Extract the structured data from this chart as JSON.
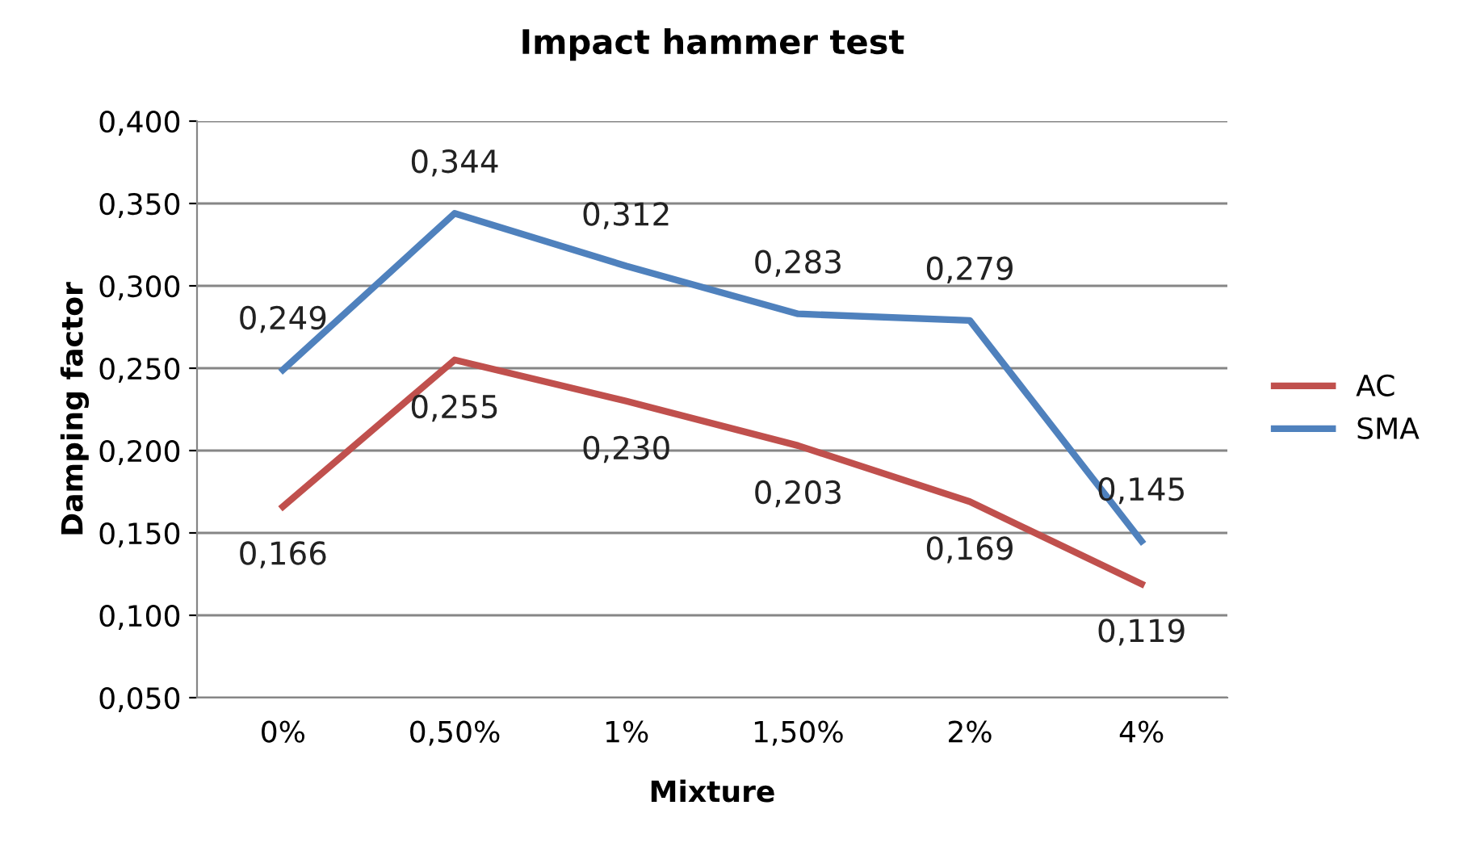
{
  "chart_data": {
    "type": "line",
    "title": "Impact hammer test",
    "xlabel": "Mixture",
    "ylabel": "Damping factor",
    "categories": [
      "0%",
      "0,50%",
      "1%",
      "1,50%",
      "2%",
      "4%"
    ],
    "series": [
      {
        "name": "AC",
        "color": "#c0504d",
        "values": [
          0.166,
          0.255,
          0.23,
          0.203,
          0.169,
          0.119
        ],
        "value_labels": [
          "0,166",
          "0,255",
          "0,230",
          "0,203",
          "0,169",
          "0,119"
        ]
      },
      {
        "name": "SMA",
        "color": "#4f81bd",
        "values": [
          0.249,
          0.344,
          0.312,
          0.283,
          0.279,
          0.145
        ],
        "value_labels": [
          "0,249",
          "0,344",
          "0,312",
          "0,283",
          "0,279",
          "0,145"
        ]
      }
    ],
    "ylim": [
      0.05,
      0.4
    ],
    "yticks": [
      {
        "value": 0.05,
        "label": "0,050"
      },
      {
        "value": 0.1,
        "label": "0,100"
      },
      {
        "value": 0.15,
        "label": "0,150"
      },
      {
        "value": 0.2,
        "label": "0,200"
      },
      {
        "value": 0.25,
        "label": "0,250"
      },
      {
        "value": 0.3,
        "label": "0,300"
      },
      {
        "value": 0.35,
        "label": "0,350"
      },
      {
        "value": 0.4,
        "label": "0,400"
      }
    ],
    "grid": "y",
    "legend": "right",
    "marker": "none",
    "line_style": "solid"
  }
}
